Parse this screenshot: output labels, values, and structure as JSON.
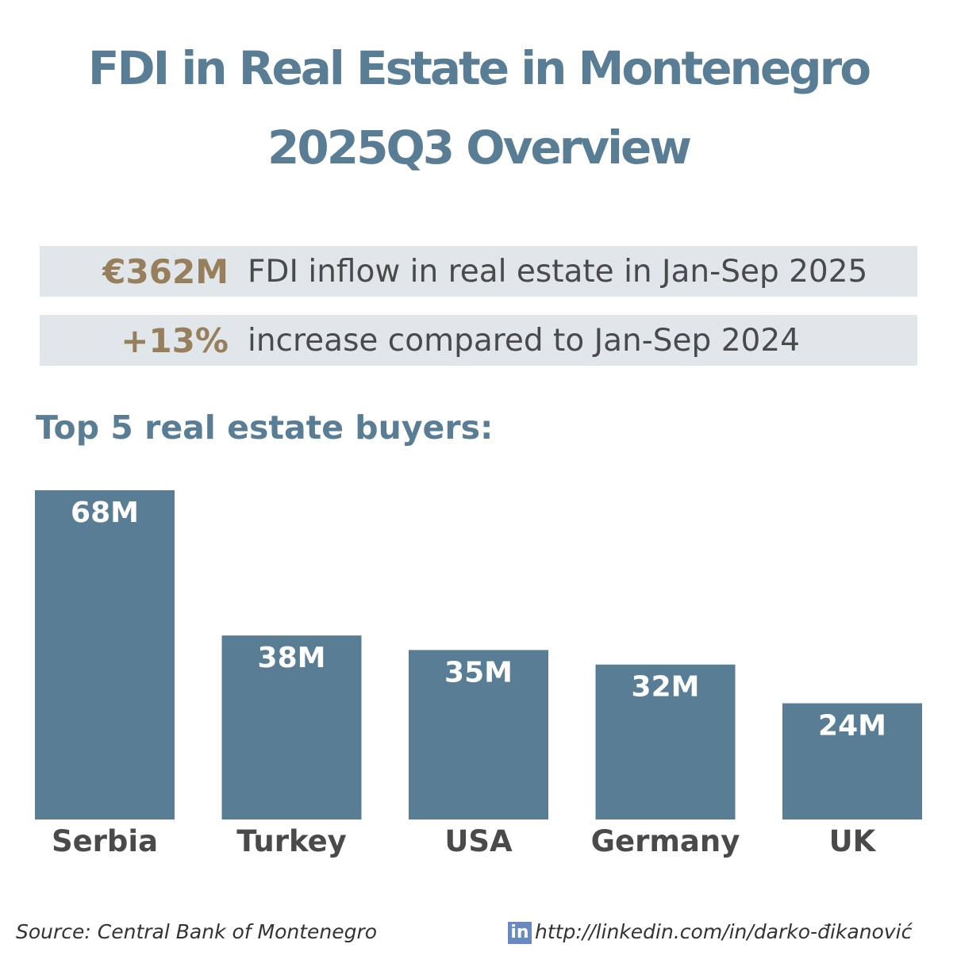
{
  "header": {
    "title_line1": "FDI in Real Estate in Montenegro",
    "title_line2": "2025Q3 Overview"
  },
  "stats": [
    {
      "value": "€362M",
      "text": "FDI inflow in real estate in Jan-Sep 2025"
    },
    {
      "value": "+13%",
      "text": "increase compared to Jan-Sep 2024"
    }
  ],
  "colors": {
    "bar": "#5a7d96",
    "title": "#5a7d96",
    "highlight": "#977f5c",
    "stat_bg": "#e1e6eb"
  },
  "chart_data": {
    "type": "bar",
    "title": "Top 5 real estate buyers:",
    "categories": [
      "Serbia",
      "Turkey",
      "USA",
      "Germany",
      "UK"
    ],
    "values": [
      68,
      38,
      35,
      32,
      24
    ],
    "data_labels": [
      "68M",
      "38M",
      "35M",
      "32M",
      "24M"
    ],
    "ylim": [
      0,
      68
    ],
    "grid": false
  },
  "footer": {
    "source": "Source: Central Bank of Montenegro",
    "linkedin_icon": "in",
    "link": "http://linkedin.com/in/darko-đikanović"
  }
}
